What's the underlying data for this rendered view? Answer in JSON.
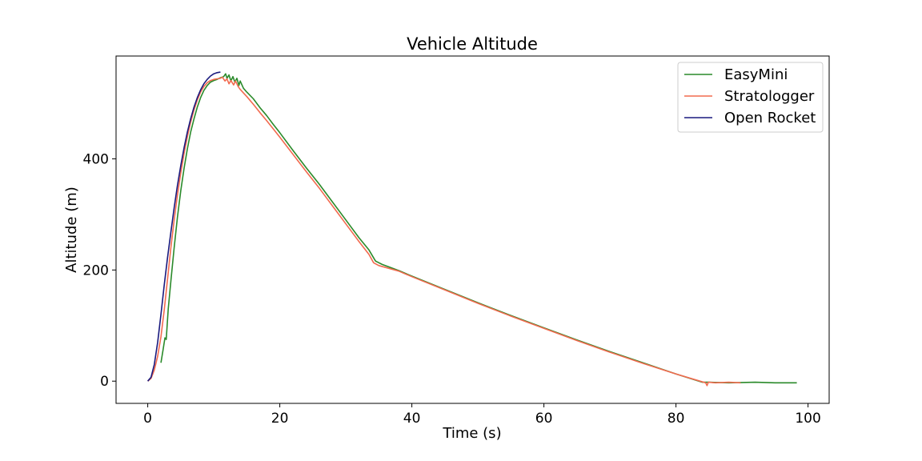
{
  "chart_data": {
    "type": "line",
    "title": "Vehicle Altitude",
    "xlabel": "Time (s)",
    "ylabel": "Altitude (m)",
    "xlim": [
      -4.8,
      103.2
    ],
    "ylim": [
      -40,
      585
    ],
    "x_ticks": [
      0,
      20,
      40,
      60,
      80,
      100
    ],
    "y_ticks": [
      0,
      200,
      400
    ],
    "grid": false,
    "legend_position": "top-right",
    "series": [
      {
        "name": "EasyMini",
        "color": "#2a8a2a",
        "points": [
          [
            2.0,
            33
          ],
          [
            2.3,
            55
          ],
          [
            2.6,
            78
          ],
          [
            2.8,
            75
          ],
          [
            3.1,
            130
          ],
          [
            3.5,
            180
          ],
          [
            4.0,
            240
          ],
          [
            4.5,
            295
          ],
          [
            5.0,
            343
          ],
          [
            5.5,
            383
          ],
          [
            6.0,
            418
          ],
          [
            6.5,
            448
          ],
          [
            7.0,
            472
          ],
          [
            7.5,
            493
          ],
          [
            8.0,
            510
          ],
          [
            8.5,
            523
          ],
          [
            9.0,
            532
          ],
          [
            9.5,
            538
          ],
          [
            10.0,
            541
          ],
          [
            10.5,
            543
          ],
          [
            11.0,
            546
          ],
          [
            11.5,
            548
          ],
          [
            11.8,
            553
          ],
          [
            12.0,
            545
          ],
          [
            12.3,
            551
          ],
          [
            12.6,
            540
          ],
          [
            12.9,
            548
          ],
          [
            13.2,
            538
          ],
          [
            13.5,
            545
          ],
          [
            13.8,
            532
          ],
          [
            14.0,
            540
          ],
          [
            14.5,
            527
          ],
          [
            15.0,
            520
          ],
          [
            16.0,
            508
          ],
          [
            17.0,
            492
          ],
          [
            18.0,
            478
          ],
          [
            19.0,
            462
          ],
          [
            20.0,
            447
          ],
          [
            22.0,
            415
          ],
          [
            24.0,
            384
          ],
          [
            26.0,
            354
          ],
          [
            28.0,
            322
          ],
          [
            30.0,
            290
          ],
          [
            32.0,
            258
          ],
          [
            33.5,
            236
          ],
          [
            34.5,
            216
          ],
          [
            35.5,
            210
          ],
          [
            38.0,
            199
          ],
          [
            40.0,
            189
          ],
          [
            45.0,
            165
          ],
          [
            50.0,
            141
          ],
          [
            55.0,
            118
          ],
          [
            60.0,
            96
          ],
          [
            65.0,
            74
          ],
          [
            70.0,
            53
          ],
          [
            75.0,
            33
          ],
          [
            80.0,
            13
          ],
          [
            84.0,
            -2
          ],
          [
            85.0,
            -2
          ],
          [
            88.0,
            -3
          ],
          [
            92.0,
            -2
          ],
          [
            95.0,
            -3
          ],
          [
            98.3,
            -3
          ]
        ]
      },
      {
        "name": "Stratologger",
        "color": "#f26a4f",
        "points": [
          [
            0.0,
            0
          ],
          [
            0.5,
            5
          ],
          [
            1.0,
            20
          ],
          [
            1.5,
            45
          ],
          [
            2.0,
            80
          ],
          [
            2.5,
            128
          ],
          [
            3.0,
            183
          ],
          [
            3.5,
            240
          ],
          [
            4.0,
            290
          ],
          [
            4.5,
            335
          ],
          [
            5.0,
            375
          ],
          [
            5.5,
            410
          ],
          [
            6.0,
            440
          ],
          [
            6.5,
            466
          ],
          [
            7.0,
            488
          ],
          [
            7.5,
            506
          ],
          [
            8.0,
            520
          ],
          [
            8.5,
            530
          ],
          [
            9.0,
            537
          ],
          [
            9.5,
            541
          ],
          [
            10.0,
            543
          ],
          [
            10.5,
            544
          ],
          [
            11.0,
            545
          ],
          [
            11.3,
            547
          ],
          [
            11.7,
            540
          ],
          [
            12.0,
            544
          ],
          [
            12.3,
            535
          ],
          [
            12.6,
            541
          ],
          [
            13.0,
            533
          ],
          [
            13.3,
            540
          ],
          [
            13.7,
            530
          ],
          [
            14.0,
            525
          ],
          [
            15.0,
            512
          ],
          [
            16.0,
            498
          ],
          [
            17.0,
            483
          ],
          [
            18.0,
            469
          ],
          [
            19.0,
            454
          ],
          [
            20.0,
            439
          ],
          [
            22.0,
            408
          ],
          [
            24.0,
            377
          ],
          [
            26.0,
            347
          ],
          [
            28.0,
            315
          ],
          [
            30.0,
            283
          ],
          [
            32.0,
            251
          ],
          [
            33.5,
            228
          ],
          [
            34.2,
            213
          ],
          [
            35.0,
            208
          ],
          [
            38.0,
            198
          ],
          [
            40.0,
            188
          ],
          [
            45.0,
            164
          ],
          [
            50.0,
            140
          ],
          [
            55.0,
            117
          ],
          [
            60.0,
            95
          ],
          [
            65.0,
            73
          ],
          [
            70.0,
            52
          ],
          [
            75.0,
            32
          ],
          [
            80.0,
            13
          ],
          [
            84.5,
            -3
          ],
          [
            84.7,
            -8
          ],
          [
            84.9,
            -2
          ],
          [
            86.0,
            -3
          ],
          [
            88.0,
            -2
          ],
          [
            89.8,
            -3
          ]
        ]
      },
      {
        "name": "Open Rocket",
        "color": "#1a1a7e",
        "points": [
          [
            0.0,
            0
          ],
          [
            0.5,
            7
          ],
          [
            1.0,
            30
          ],
          [
            1.5,
            70
          ],
          [
            2.0,
            120
          ],
          [
            2.5,
            173
          ],
          [
            3.0,
            222
          ],
          [
            3.5,
            268
          ],
          [
            4.0,
            312
          ],
          [
            4.5,
            352
          ],
          [
            5.0,
            388
          ],
          [
            5.5,
            420
          ],
          [
            6.0,
            448
          ],
          [
            6.5,
            472
          ],
          [
            7.0,
            493
          ],
          [
            7.5,
            510
          ],
          [
            8.0,
            524
          ],
          [
            8.5,
            535
          ],
          [
            9.0,
            543
          ],
          [
            9.5,
            549
          ],
          [
            10.0,
            553
          ],
          [
            10.5,
            555
          ],
          [
            11.0,
            556
          ]
        ]
      }
    ]
  }
}
